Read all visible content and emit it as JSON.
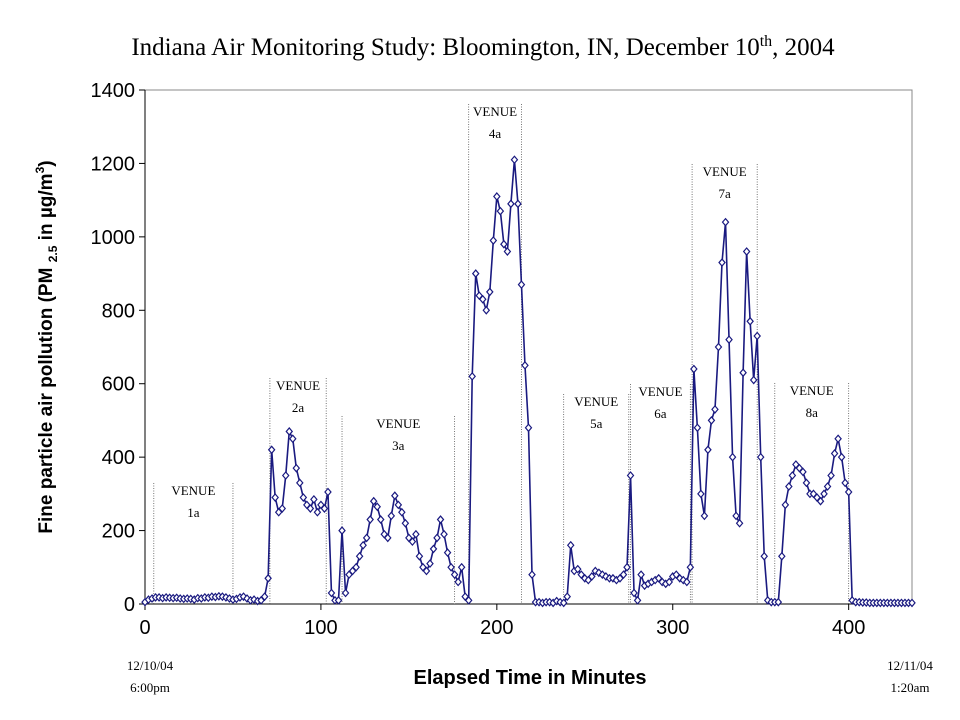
{
  "chart_data": {
    "type": "line",
    "title": [
      "Indiana Air Monitoring Study: Bloomington, IN, December 10",
      "th",
      ", 2004"
    ],
    "y_label": [
      "Fine particle air pollution (PM ",
      "2.5",
      " in µg/m",
      "3",
      ")"
    ],
    "x_label": "Elapsed Time in Minutes",
    "start_label": [
      "12/10/04",
      "6:00pm"
    ],
    "end_label": [
      "12/11/04",
      "1:20am"
    ],
    "xlim": [
      0,
      436
    ],
    "xticks": [
      0,
      100,
      200,
      300,
      400
    ],
    "ylim": [
      0,
      1400
    ],
    "yticks": [
      0,
      200,
      400,
      600,
      800,
      1000,
      1200,
      1400
    ],
    "venues": [
      {
        "label": [
          "VENUE",
          "1a"
        ],
        "x": [
          5,
          50
        ]
      },
      {
        "label": [
          "VENUE",
          "2a"
        ],
        "x": [
          71,
          103
        ]
      },
      {
        "label": [
          "VENUE",
          "3a"
        ],
        "x": [
          112,
          176
        ]
      },
      {
        "label": [
          "VENUE",
          "4a"
        ],
        "x": [
          184,
          214
        ]
      },
      {
        "label": [
          "VENUE",
          "5a"
        ],
        "x": [
          238,
          275
        ]
      },
      {
        "label": [
          "VENUE",
          "6a"
        ],
        "x": [
          276,
          310
        ]
      },
      {
        "label": [
          "VENUE",
          "7a"
        ],
        "x": [
          311,
          348
        ]
      },
      {
        "label": [
          "VENUE",
          "8a"
        ],
        "x": [
          358,
          400
        ]
      }
    ],
    "x": [
      0,
      2,
      4,
      6,
      8,
      10,
      12,
      14,
      16,
      18,
      20,
      22,
      24,
      26,
      28,
      30,
      32,
      34,
      36,
      38,
      40,
      42,
      44,
      46,
      48,
      50,
      52,
      54,
      56,
      58,
      60,
      62,
      64,
      66,
      68,
      70,
      72,
      74,
      76,
      78,
      80,
      82,
      84,
      86,
      88,
      90,
      92,
      94,
      96,
      98,
      100,
      102,
      104,
      106,
      108,
      110,
      112,
      114,
      116,
      118,
      120,
      122,
      124,
      126,
      128,
      130,
      132,
      134,
      136,
      138,
      140,
      142,
      144,
      146,
      148,
      150,
      152,
      154,
      156,
      158,
      160,
      162,
      164,
      166,
      168,
      170,
      172,
      174,
      176,
      178,
      180,
      182,
      184,
      186,
      188,
      190,
      192,
      194,
      196,
      198,
      200,
      202,
      204,
      206,
      208,
      210,
      212,
      214,
      216,
      218,
      220,
      222,
      224,
      226,
      228,
      230,
      232,
      234,
      236,
      238,
      240,
      242,
      244,
      246,
      248,
      250,
      252,
      254,
      256,
      258,
      260,
      262,
      264,
      266,
      268,
      270,
      272,
      274,
      276,
      278,
      280,
      282,
      284,
      286,
      288,
      290,
      292,
      294,
      296,
      298,
      300,
      302,
      304,
      306,
      308,
      310,
      312,
      314,
      316,
      318,
      320,
      322,
      324,
      326,
      328,
      330,
      332,
      334,
      336,
      338,
      340,
      342,
      344,
      346,
      348,
      350,
      352,
      354,
      356,
      358,
      360,
      362,
      364,
      366,
      368,
      370,
      372,
      374,
      376,
      378,
      380,
      382,
      384,
      386,
      388,
      390,
      392,
      394,
      396,
      398,
      400,
      402,
      404,
      406,
      408,
      410,
      412,
      414,
      416,
      418,
      420,
      422,
      424,
      426,
      428,
      430,
      432,
      434,
      436
    ],
    "series": [
      {
        "color": "#1a1a80",
        "values": [
          5,
          12,
          15,
          18,
          18,
          16,
          18,
          17,
          16,
          17,
          15,
          14,
          15,
          14,
          12,
          16,
          15,
          18,
          17,
          20,
          19,
          21,
          20,
          18,
          15,
          12,
          14,
          18,
          20,
          15,
          10,
          12,
          8,
          10,
          20,
          70,
          420,
          290,
          250,
          260,
          350,
          470,
          450,
          370,
          330,
          290,
          270,
          260,
          285,
          250,
          270,
          260,
          305,
          30,
          10,
          10,
          200,
          30,
          80,
          90,
          100,
          130,
          160,
          180,
          230,
          280,
          265,
          230,
          190,
          180,
          240,
          295,
          270,
          250,
          220,
          180,
          170,
          190,
          130,
          100,
          90,
          110,
          150,
          180,
          230,
          190,
          140,
          100,
          80,
          60,
          100,
          20,
          10,
          620,
          900,
          840,
          830,
          800,
          850,
          990,
          1110,
          1070,
          980,
          960,
          1090,
          1210,
          1090,
          870,
          650,
          480,
          80,
          5,
          5,
          3,
          5,
          5,
          3,
          8,
          5,
          3,
          20,
          160,
          90,
          95,
          80,
          70,
          65,
          75,
          90,
          85,
          80,
          75,
          70,
          70,
          65,
          70,
          80,
          100,
          350,
          30,
          10,
          80,
          50,
          55,
          60,
          65,
          70,
          60,
          55,
          60,
          75,
          80,
          70,
          65,
          60,
          100,
          640,
          480,
          300,
          240,
          420,
          500,
          530,
          700,
          930,
          1040,
          720,
          400,
          240,
          220,
          630,
          960,
          770,
          610,
          730,
          400,
          130,
          10,
          5,
          5,
          5,
          130,
          270,
          320,
          350,
          380,
          370,
          360,
          330,
          300,
          300,
          290,
          280,
          300,
          320,
          350,
          410,
          450,
          400,
          330,
          305,
          10,
          5,
          5,
          4,
          4,
          3,
          3,
          3,
          3,
          3,
          3,
          3,
          3,
          3,
          3,
          3,
          3,
          3
        ]
      }
    ]
  }
}
